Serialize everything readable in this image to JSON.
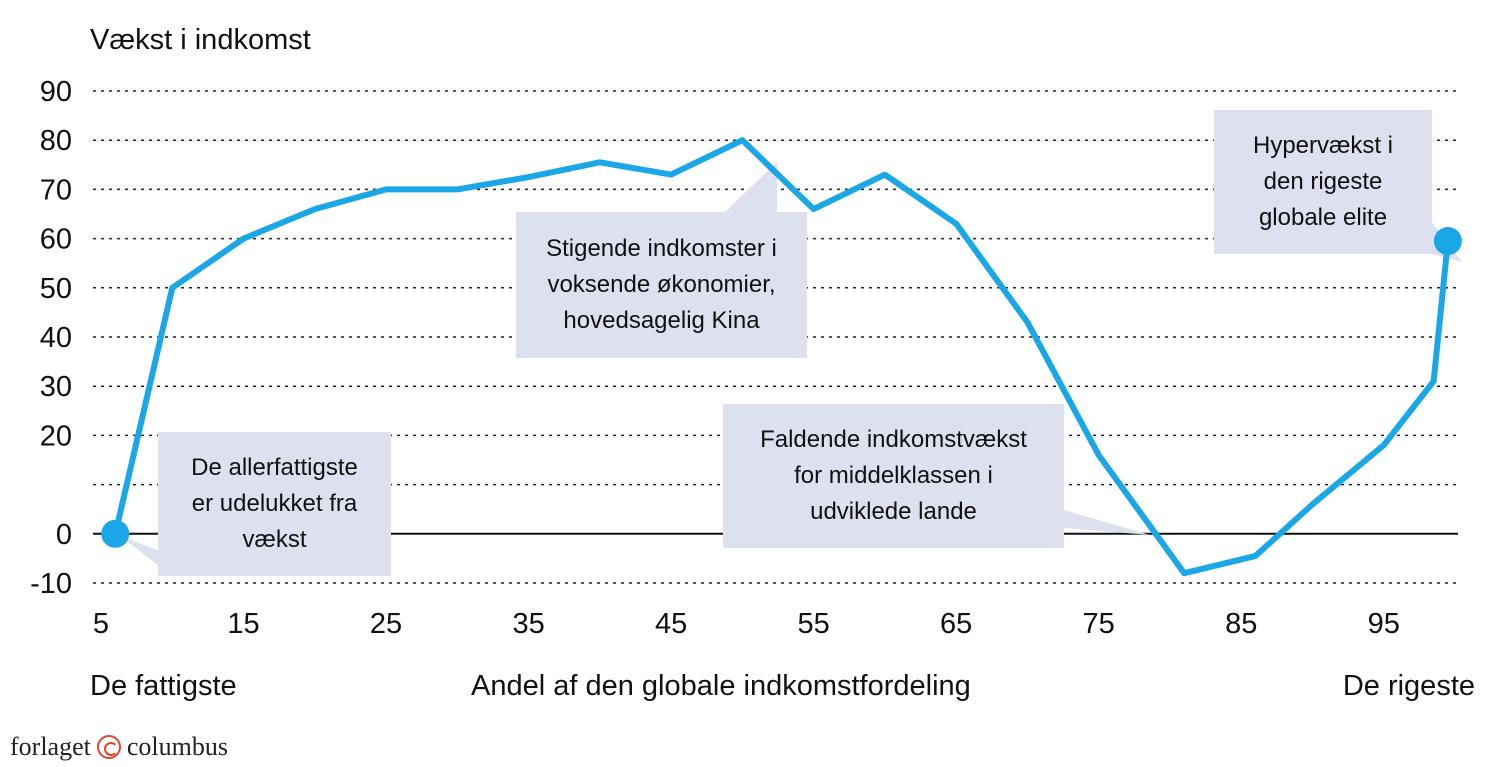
{
  "chart_data": {
    "type": "line",
    "ylabel": "Vækst i indkomst",
    "xlabel": "Andel af den globale indkomstfordeling",
    "x_left_label": "De fattigste",
    "x_right_label": "De rigeste",
    "xlim": [
      5,
      100
    ],
    "ylim": [
      -10,
      90
    ],
    "xticks": [
      5,
      15,
      25,
      35,
      45,
      55,
      65,
      75,
      85,
      95
    ],
    "yticks": [
      90,
      80,
      70,
      60,
      50,
      40,
      30,
      20,
      10,
      0,
      -10
    ],
    "ytick_labels": [
      "90",
      "80",
      "70",
      "60",
      "50",
      "40",
      "30",
      "20",
      "",
      "0",
      "-10"
    ],
    "grid": "horizontal dotted",
    "line_color": "#1aa7e8",
    "series": [
      {
        "x": [
          6,
          10,
          15,
          20,
          25,
          30,
          35,
          40,
          45,
          50,
          55,
          60,
          65,
          70,
          75,
          81,
          86,
          90,
          95,
          98.5,
          99.5
        ],
        "y": [
          0,
          50,
          60,
          66,
          70,
          70,
          72.5,
          75.5,
          73,
          80,
          66,
          73,
          63,
          43,
          16,
          -8,
          -4.5,
          6,
          18,
          31,
          59.5
        ]
      }
    ],
    "annotations": [
      {
        "lines": [
          "De allerfattigste",
          "er udelukket fra",
          "vækst"
        ]
      },
      {
        "lines": [
          "Stigende indkomster i",
          "voksende økonomier,",
          "hovedsagelig Kina"
        ]
      },
      {
        "lines": [
          "Faldende indkomstvækst",
          "for middelklassen i",
          "udviklede lande"
        ]
      },
      {
        "lines": [
          "Hypervækst i",
          "den rigeste",
          "globale elite"
        ]
      }
    ],
    "annotation_color": "#dde0ef"
  },
  "footer": {
    "publisher_left": "forlaget",
    "publisher_right": "columbus",
    "logo_icon": "copyright-circle-icon",
    "logo_color": "#e2452a"
  }
}
